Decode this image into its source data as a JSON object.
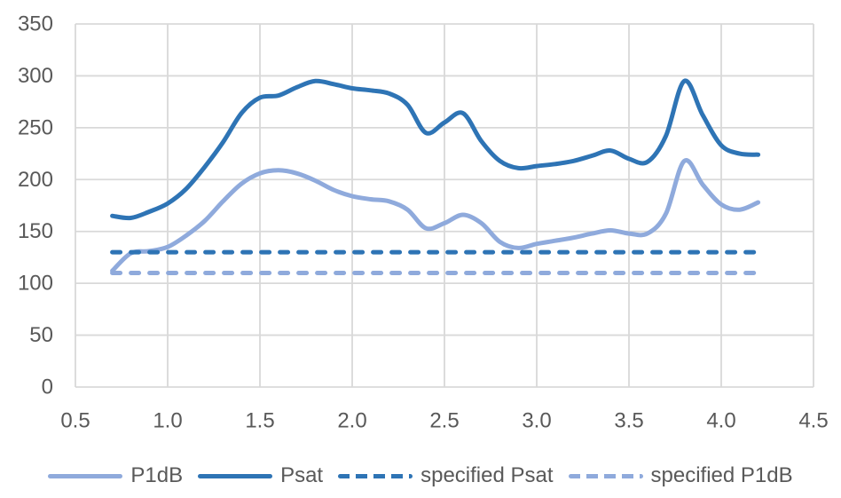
{
  "chart": {
    "background": "#FFFFFF",
    "grid_color": "#D9D9D9",
    "tick_label_color": "#595959",
    "legend_label_color": "#595959"
  },
  "chart_data": {
    "type": "line",
    "title": "",
    "xlabel": "",
    "ylabel": "",
    "xlim": [
      0.5,
      4.5
    ],
    "ylim": [
      0,
      350
    ],
    "grid": true,
    "smooth_lines": true,
    "legend_position": "bottom",
    "xtick_labels": [
      "0.5",
      "1.0",
      "1.5",
      "2.0",
      "2.5",
      "3.0",
      "3.5",
      "4.0",
      "4.5"
    ],
    "ytick_labels": [
      "0",
      "50",
      "100",
      "150",
      "200",
      "250",
      "300",
      "350"
    ],
    "x": [
      0.7,
      0.8,
      0.9,
      1.0,
      1.1,
      1.2,
      1.3,
      1.4,
      1.5,
      1.6,
      1.7,
      1.8,
      1.9,
      2.0,
      2.1,
      2.2,
      2.3,
      2.4,
      2.5,
      2.6,
      2.7,
      2.8,
      2.9,
      3.0,
      3.1,
      3.2,
      3.3,
      3.4,
      3.5,
      3.6,
      3.7,
      3.8,
      3.9,
      4.0,
      4.1,
      4.2
    ],
    "series": [
      {
        "name": "P1dB",
        "color": "#8FAADC",
        "dash": false,
        "values": [
          112,
          129,
          131,
          135,
          146,
          160,
          179,
          196,
          206,
          209,
          206,
          199,
          190,
          184,
          181,
          179,
          171,
          153,
          158,
          166,
          158,
          140,
          134,
          138,
          141,
          144,
          148,
          151,
          148,
          148,
          167,
          218,
          195,
          176,
          171,
          178
        ]
      },
      {
        "name": "Psat",
        "color": "#2E74B5",
        "dash": false,
        "values": [
          165,
          163,
          169,
          177,
          191,
          212,
          236,
          264,
          279,
          281,
          289,
          295,
          292,
          288,
          286,
          283,
          272,
          245,
          255,
          264,
          237,
          218,
          211,
          213,
          215,
          218,
          223,
          228,
          220,
          217,
          242,
          295,
          262,
          233,
          225,
          224
        ]
      },
      {
        "name": "specified Psat",
        "color": "#2E74B5",
        "dash": true,
        "constant": 130
      },
      {
        "name": "specified P1dB",
        "color": "#8FAADC",
        "dash": true,
        "constant": 110
      }
    ]
  }
}
